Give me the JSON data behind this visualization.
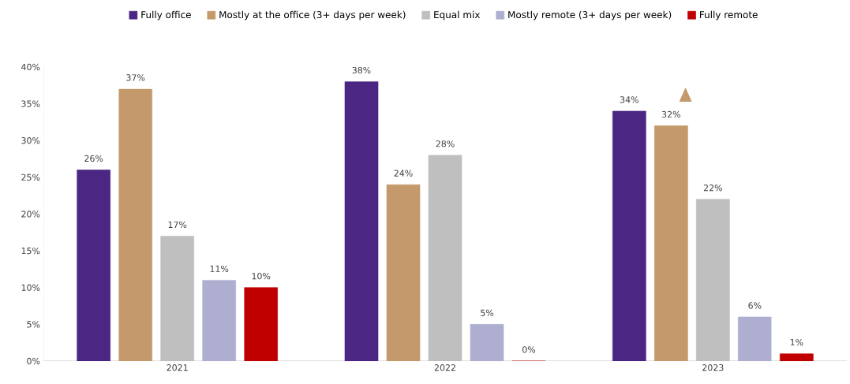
{
  "chart_data": {
    "type": "bar",
    "categories": [
      "2021",
      "2022",
      "2023"
    ],
    "series": [
      {
        "name": "Fully office",
        "color": "#4b2683",
        "values": [
          26,
          38,
          34
        ],
        "value_labels": [
          "26%",
          "38%",
          "34%"
        ]
      },
      {
        "name": "Mostly at the office (3+ days per week)",
        "color": "#c49a6c",
        "values": [
          37,
          24,
          32
        ],
        "value_labels": [
          "37%",
          "24%",
          "32%"
        ]
      },
      {
        "name": "Equal mix",
        "color": "#bfbfbf",
        "values": [
          17,
          28,
          22
        ],
        "value_labels": [
          "17%",
          "28%",
          "22%"
        ]
      },
      {
        "name": "Mostly remote (3+ days per week)",
        "color": "#aeaed0",
        "values": [
          11,
          5,
          6
        ],
        "value_labels": [
          "11%",
          "5%",
          "6%"
        ]
      },
      {
        "name": "Fully remote",
        "color": "#c00000",
        "values": [
          10,
          0,
          1
        ],
        "value_labels": [
          "10%",
          "0%",
          "1%"
        ]
      }
    ],
    "ylim": [
      0,
      40
    ],
    "yticks": [
      {
        "value": 0,
        "label": "0%"
      },
      {
        "value": 5,
        "label": "5%"
      },
      {
        "value": 10,
        "label": "10%"
      },
      {
        "value": 15,
        "label": "15%"
      },
      {
        "value": 20,
        "label": "20%"
      },
      {
        "value": 25,
        "label": "25%"
      },
      {
        "value": 30,
        "label": "30%"
      },
      {
        "value": 35,
        "label": "35%"
      },
      {
        "value": 40,
        "label": "40%"
      }
    ],
    "legend": "top"
  }
}
